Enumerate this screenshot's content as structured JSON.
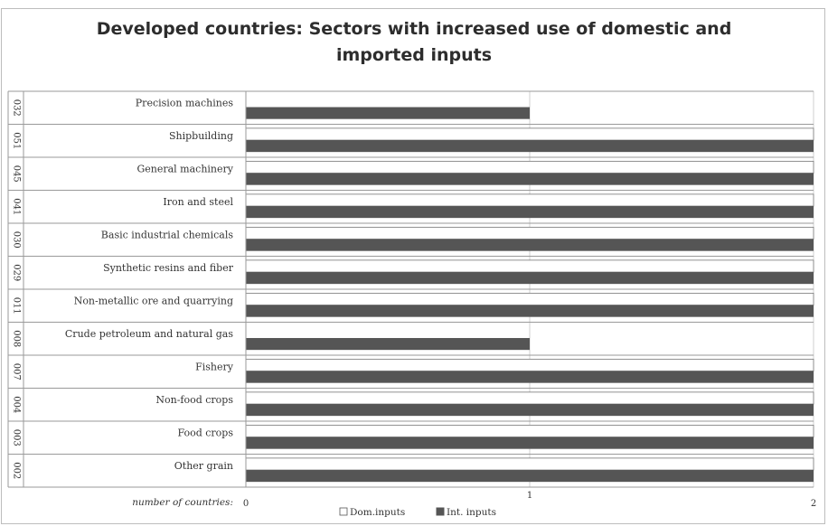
{
  "chart_data": {
    "type": "bar",
    "orientation": "horizontal",
    "title_line1": "Developed countries:  Sectors with increased use of domestic and",
    "title_line2": "imported inputs",
    "xlabel": "number of countries:",
    "xlim": [
      0,
      2
    ],
    "xticks": [
      "0",
      "1",
      "2"
    ],
    "grid": true,
    "legend_position": "bottom",
    "categories": [
      {
        "code": "032",
        "name": "Precision machines"
      },
      {
        "code": "051",
        "name": "Shipbuilding"
      },
      {
        "code": "045",
        "name": "General machinery"
      },
      {
        "code": "041",
        "name": "Iron and steel"
      },
      {
        "code": "030",
        "name": "Basic industrial chemicals"
      },
      {
        "code": "029",
        "name": "Synthetic resins and fiber"
      },
      {
        "code": "011",
        "name": "Non-metallic ore and quarrying"
      },
      {
        "code": "008",
        "name": "Crude petroleum and natural gas"
      },
      {
        "code": "007",
        "name": "Fishery"
      },
      {
        "code": "004",
        "name": "Non-food crops"
      },
      {
        "code": "003",
        "name": "Food crops"
      },
      {
        "code": "002",
        "name": "Other grain"
      }
    ],
    "series": [
      {
        "name": "Dom.inputs",
        "color": "#ffffff",
        "values": [
          0,
          2,
          2,
          2,
          2,
          2,
          2,
          0,
          2,
          2,
          2,
          2
        ]
      },
      {
        "name": "Int. inputs",
        "color": "#555555",
        "values": [
          1,
          2,
          2,
          2,
          2,
          2,
          2,
          1,
          2,
          2,
          2,
          2
        ]
      }
    ]
  }
}
